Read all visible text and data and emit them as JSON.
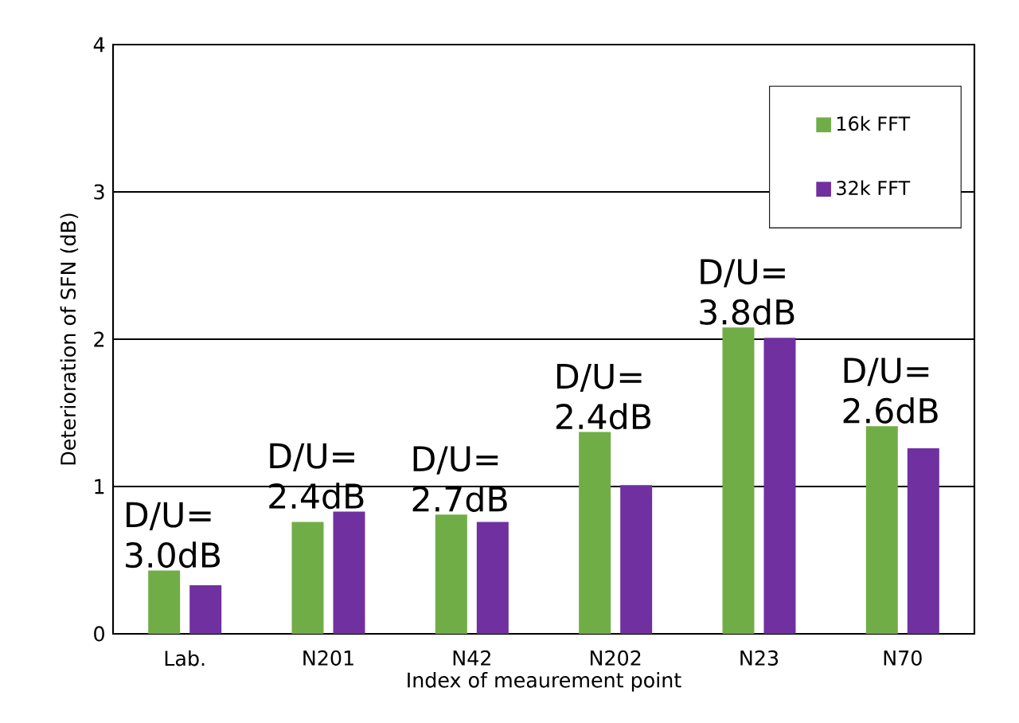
{
  "chart_data": {
    "type": "bar",
    "categories": [
      "Lab.",
      "N201",
      "N42",
      "N202",
      "N23",
      "N70"
    ],
    "series": [
      {
        "name": "16k FFT",
        "color": "#70ad47",
        "values": [
          0.43,
          0.76,
          0.81,
          1.37,
          2.08,
          1.41
        ]
      },
      {
        "name": "32k FFT",
        "color": "#7030a0",
        "values": [
          0.33,
          0.83,
          0.76,
          1.01,
          2.01,
          1.26
        ]
      }
    ],
    "xlabel": "Index of meaurement point",
    "ylabel": "Deterioration of SFN (dB)",
    "ylim": [
      0,
      4
    ],
    "yticks": [
      0,
      1,
      2,
      3,
      4
    ],
    "grid": "y",
    "legend": "top right",
    "annotations": [
      {
        "text": "D/U= 3.0dB",
        "x": "Lab.",
        "y": 0.43
      },
      {
        "text": "D/U= 2.4dB",
        "x": "N201",
        "y": 0.83
      },
      {
        "text": "D/U= 2.7dB",
        "x": "N42",
        "y": 0.81
      },
      {
        "text": "D/U= 2.4dB",
        "x": "N202",
        "y": 1.37
      },
      {
        "text": "D/U= 3.8dB",
        "x": "N23",
        "y": 2.08
      },
      {
        "text": "D/U= 2.6dB",
        "x": "N70",
        "y": 1.41
      }
    ]
  }
}
